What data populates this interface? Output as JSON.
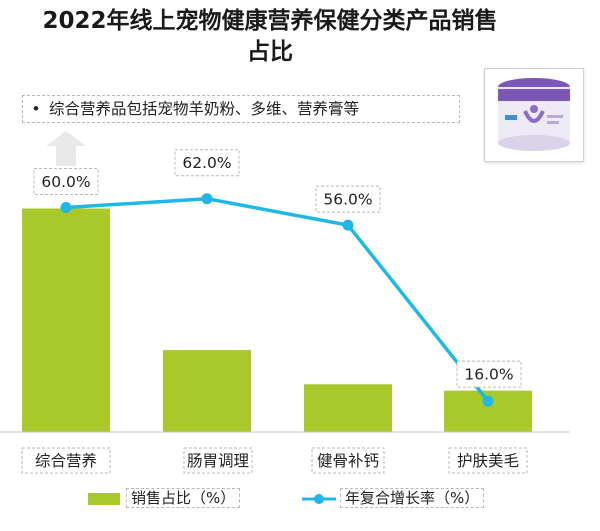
{
  "title_lines": [
    "2022年线上宠物健康营养保健分类产品销售",
    "占比"
  ],
  "note": {
    "bullet": "•",
    "text": "综合营养品包括宠物羊奶粉、多维、营养膏等"
  },
  "colors": {
    "bar": "#a9c92b",
    "line": "#1eb7e6"
  },
  "chart_data": {
    "type": "bar",
    "categories": [
      "综合营养",
      "肠胃调理",
      "健骨补钙",
      "护肤美毛"
    ],
    "series": [
      {
        "name": "销售占比（%）",
        "type": "bar",
        "values": [
          28.1,
          10.3,
          6.0,
          5.2
        ]
      },
      {
        "name": "年复合增长率（%）",
        "type": "line",
        "values": [
          60.0,
          62.0,
          56.0,
          16.0
        ],
        "labels": [
          "60.0%",
          "62.0%",
          "56.0%",
          "16.0%"
        ]
      }
    ],
    "legend_position": "bottom"
  }
}
